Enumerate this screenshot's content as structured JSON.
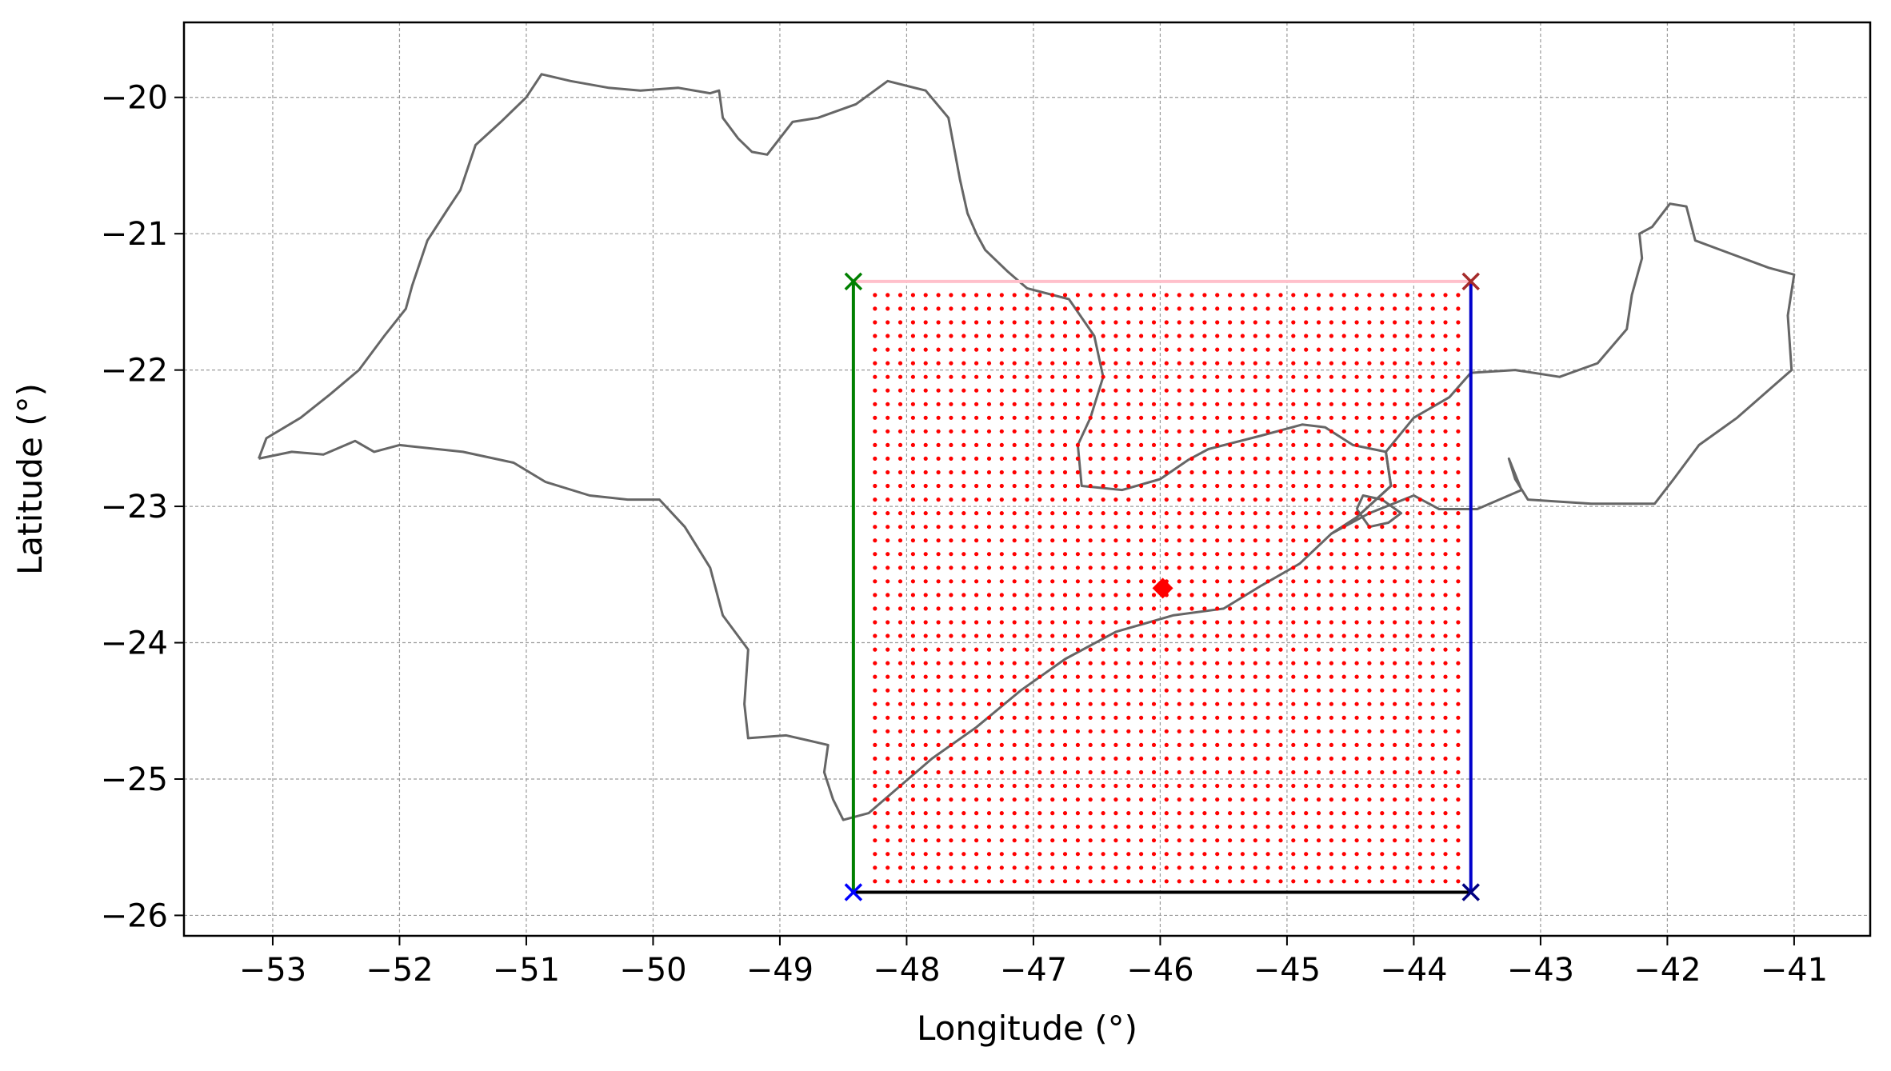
{
  "chart_data": {
    "type": "scatter",
    "title": "",
    "xlabel": "Longitude (°)",
    "ylabel": "Latitude (°)",
    "xlim": [
      -53.7,
      -40.4
    ],
    "ylim": [
      -26.15,
      -19.45
    ],
    "x_ticks": [
      -53,
      -52,
      -51,
      -50,
      -49,
      -48,
      -47,
      -46,
      -45,
      -44,
      -43,
      -42,
      -41
    ],
    "y_ticks": [
      -20,
      -21,
      -22,
      -23,
      -24,
      -25,
      -26
    ],
    "x_tick_labels": [
      "−53",
      "−52",
      "−51",
      "−50",
      "−49",
      "−48",
      "−47",
      "−46",
      "−45",
      "−44",
      "−43",
      "−42",
      "−41"
    ],
    "y_tick_labels": [
      "−20",
      "−21",
      "−22",
      "−23",
      "−24",
      "−25",
      "−26"
    ],
    "grid": true,
    "colors": {
      "grid_points": "#ff0000",
      "center_point": "#ff0000",
      "boundary": "#666666",
      "top_edge": "#ffc0cb",
      "bottom_edge": "#000000",
      "left_edge": "#008000",
      "right_edge": "#0000cc"
    },
    "bbox_corners": {
      "top_left": {
        "lon": -48.42,
        "lat": -21.35,
        "color": "#008000"
      },
      "top_right": {
        "lon": -43.55,
        "lat": -21.35,
        "color": "#a52a2a"
      },
      "bottom_left": {
        "lon": -48.42,
        "lat": -25.83,
        "color": "#0000ff"
      },
      "bottom_right": {
        "lon": -43.55,
        "lat": -25.83,
        "color": "#000080"
      }
    },
    "grid_points": {
      "lon_min": -48.25,
      "lon_max": -43.65,
      "lon_step": 0.1,
      "lat_min": -25.75,
      "lat_max": -21.45,
      "lat_step": 0.1
    },
    "center_point": {
      "lon": -45.98,
      "lat": -23.6
    },
    "boundary_outlines": [
      [
        [
          -53.11,
          -22.65
        ],
        [
          -53.05,
          -22.5
        ],
        [
          -52.78,
          -22.35
        ],
        [
          -52.55,
          -22.18
        ],
        [
          -52.32,
          -22.0
        ],
        [
          -52.12,
          -21.75
        ],
        [
          -51.95,
          -21.55
        ],
        [
          -51.9,
          -21.38
        ],
        [
          -51.78,
          -21.05
        ],
        [
          -51.62,
          -20.82
        ],
        [
          -51.52,
          -20.68
        ],
        [
          -51.4,
          -20.35
        ],
        [
          -51.2,
          -20.18
        ],
        [
          -51.0,
          -20.0
        ],
        [
          -50.88,
          -19.83
        ],
        [
          -50.65,
          -19.88
        ],
        [
          -50.35,
          -19.93
        ],
        [
          -50.1,
          -19.95
        ],
        [
          -49.8,
          -19.93
        ],
        [
          -49.55,
          -19.97
        ],
        [
          -49.48,
          -19.95
        ],
        [
          -49.45,
          -20.15
        ],
        [
          -49.33,
          -20.3
        ],
        [
          -49.22,
          -20.4
        ],
        [
          -49.1,
          -20.42
        ],
        [
          -48.9,
          -20.18
        ],
        [
          -48.7,
          -20.15
        ],
        [
          -48.4,
          -20.05
        ],
        [
          -48.15,
          -19.88
        ],
        [
          -47.85,
          -19.95
        ],
        [
          -47.67,
          -20.15
        ],
        [
          -47.58,
          -20.6
        ],
        [
          -47.52,
          -20.85
        ],
        [
          -47.45,
          -21.0
        ],
        [
          -47.38,
          -21.12
        ],
        [
          -47.2,
          -21.28
        ],
        [
          -47.05,
          -21.4
        ],
        [
          -46.72,
          -21.48
        ],
        [
          -46.52,
          -21.75
        ],
        [
          -46.45,
          -22.05
        ],
        [
          -46.55,
          -22.35
        ],
        [
          -46.65,
          -22.55
        ],
        [
          -46.62,
          -22.85
        ],
        [
          -46.3,
          -22.88
        ],
        [
          -46.0,
          -22.8
        ],
        [
          -45.78,
          -22.66
        ],
        [
          -45.62,
          -22.58
        ],
        [
          -45.2,
          -22.48
        ],
        [
          -44.88,
          -22.4
        ],
        [
          -44.7,
          -22.42
        ],
        [
          -44.48,
          -22.55
        ],
        [
          -44.22,
          -22.6
        ],
        [
          -44.18,
          -22.85
        ],
        [
          -44.45,
          -23.08
        ],
        [
          -44.65,
          -23.2
        ],
        [
          -44.9,
          -23.42
        ],
        [
          -45.2,
          -23.58
        ],
        [
          -45.5,
          -23.75
        ],
        [
          -45.9,
          -23.8
        ],
        [
          -46.35,
          -23.92
        ],
        [
          -46.75,
          -24.12
        ],
        [
          -47.1,
          -24.35
        ],
        [
          -47.45,
          -24.62
        ],
        [
          -47.8,
          -24.85
        ],
        [
          -48.05,
          -25.05
        ],
        [
          -48.3,
          -25.25
        ],
        [
          -48.5,
          -25.3
        ],
        [
          -48.58,
          -25.15
        ],
        [
          -48.65,
          -24.95
        ],
        [
          -48.62,
          -24.75
        ],
        [
          -48.95,
          -24.68
        ],
        [
          -49.25,
          -24.7
        ],
        [
          -49.28,
          -24.45
        ],
        [
          -49.25,
          -24.05
        ],
        [
          -49.45,
          -23.8
        ],
        [
          -49.55,
          -23.45
        ],
        [
          -49.75,
          -23.15
        ],
        [
          -49.95,
          -22.95
        ],
        [
          -50.2,
          -22.95
        ],
        [
          -50.5,
          -22.92
        ],
        [
          -50.85,
          -22.82
        ],
        [
          -51.1,
          -22.68
        ],
        [
          -51.5,
          -22.6
        ],
        [
          -52.0,
          -22.55
        ],
        [
          -52.2,
          -22.6
        ],
        [
          -52.35,
          -22.52
        ],
        [
          -52.6,
          -22.62
        ],
        [
          -52.85,
          -22.6
        ],
        [
          -53.11,
          -22.65
        ]
      ],
      [
        [
          -44.22,
          -22.6
        ],
        [
          -44.0,
          -22.35
        ],
        [
          -43.72,
          -22.2
        ],
        [
          -43.55,
          -22.02
        ],
        [
          -43.2,
          -22.0
        ],
        [
          -42.85,
          -22.05
        ],
        [
          -42.55,
          -21.95
        ],
        [
          -42.32,
          -21.7
        ],
        [
          -42.28,
          -21.45
        ],
        [
          -42.2,
          -21.18
        ],
        [
          -42.22,
          -21.0
        ],
        [
          -42.12,
          -20.95
        ],
        [
          -41.98,
          -20.78
        ],
        [
          -41.85,
          -20.8
        ],
        [
          -41.78,
          -21.05
        ],
        [
          -41.2,
          -21.25
        ],
        [
          -41.0,
          -21.3
        ],
        [
          -41.05,
          -21.6
        ],
        [
          -41.02,
          -22.0
        ],
        [
          -41.45,
          -22.35
        ],
        [
          -41.75,
          -22.55
        ],
        [
          -41.95,
          -22.8
        ],
        [
          -42.1,
          -22.98
        ],
        [
          -42.6,
          -22.98
        ],
        [
          -43.1,
          -22.95
        ],
        [
          -43.2,
          -22.8
        ],
        [
          -43.25,
          -22.65
        ],
        [
          -43.15,
          -22.88
        ],
        [
          -43.5,
          -23.02
        ],
        [
          -43.8,
          -23.02
        ],
        [
          -44.0,
          -22.92
        ],
        [
          -44.35,
          -23.05
        ],
        [
          -44.65,
          -23.2
        ],
        [
          -44.45,
          -23.08
        ],
        [
          -44.18,
          -22.85
        ],
        [
          -44.22,
          -22.6
        ]
      ],
      [
        [
          -44.45,
          -23.02
        ],
        [
          -44.35,
          -23.15
        ],
        [
          -44.2,
          -23.12
        ],
        [
          -44.1,
          -23.05
        ],
        [
          -44.25,
          -22.95
        ],
        [
          -44.4,
          -22.92
        ],
        [
          -44.45,
          -23.02
        ]
      ]
    ]
  }
}
